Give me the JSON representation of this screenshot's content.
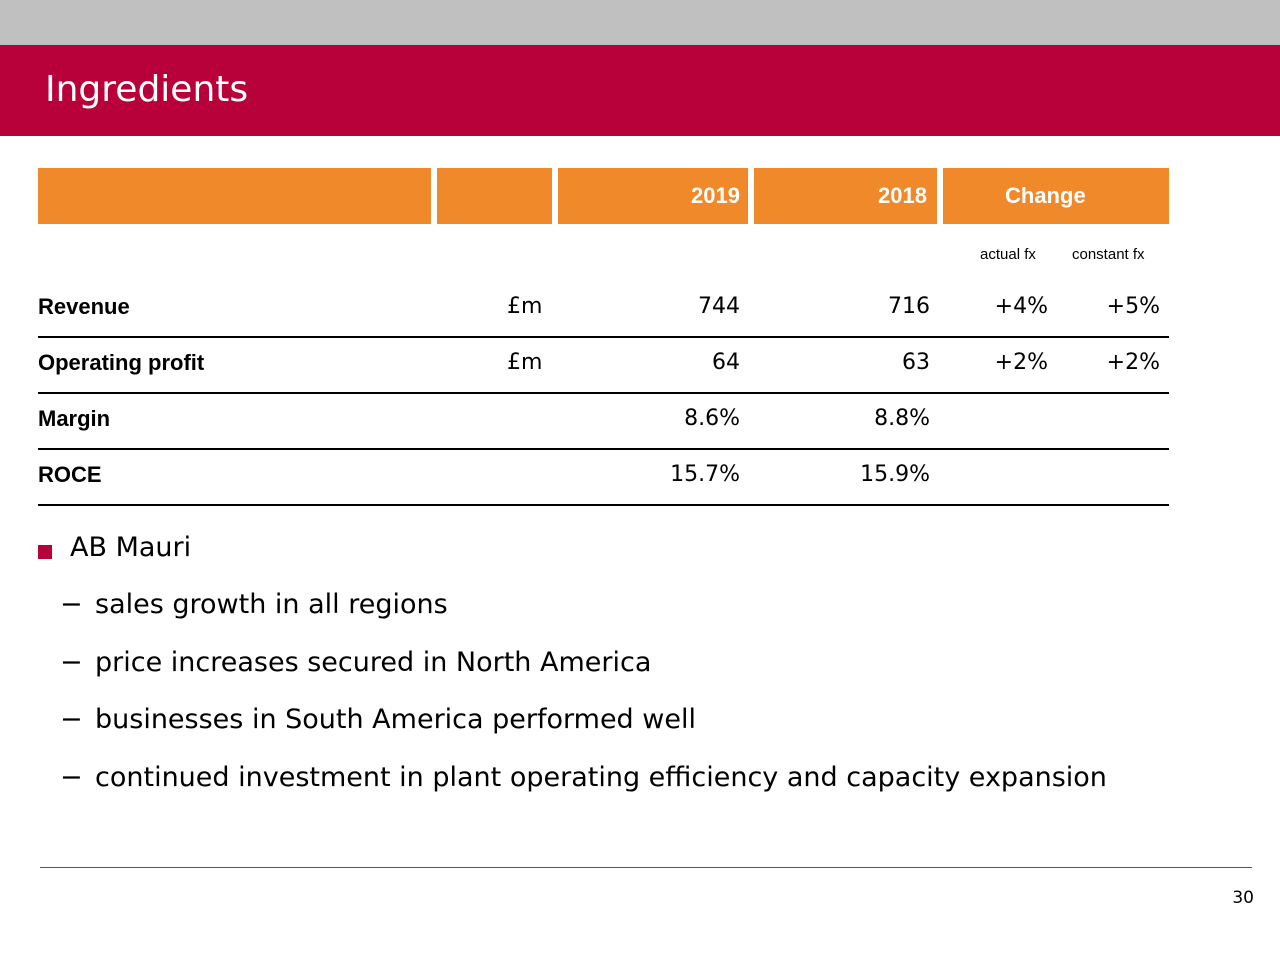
{
  "slide": {
    "title": "Ingredients",
    "page_number": "30"
  },
  "table": {
    "headers": {
      "col_2019": "2019",
      "col_2018": "2018",
      "col_change": "Change"
    },
    "subheaders": {
      "actual": "actual fx",
      "constant": "constant fx"
    },
    "rows": [
      {
        "label": "Revenue",
        "unit": "£m",
        "v2019": "744",
        "v2018": "716",
        "actual": "+4%",
        "constant": "+5%"
      },
      {
        "label": "Operating profit",
        "unit": "£m",
        "v2019": "64",
        "v2018": "63",
        "actual": "+2%",
        "constant": "+2%"
      },
      {
        "label": "Margin",
        "unit": "",
        "v2019": "8.6%",
        "v2018": "8.8%",
        "actual": "",
        "constant": ""
      },
      {
        "label": "ROCE",
        "unit": "",
        "v2019": "15.7%",
        "v2018": "15.9%",
        "actual": "",
        "constant": ""
      }
    ]
  },
  "bullets": {
    "main": "AB Mauri",
    "dash": "−",
    "items": [
      "sales growth in all regions",
      "price increases secured in North America",
      "businesses in South America performed well",
      "continued investment in plant operating efficiency and capacity expansion"
    ]
  },
  "colors": {
    "accent": "#b8003a",
    "header_orange": "#f0892a",
    "top_grey": "#c0c0c0"
  }
}
